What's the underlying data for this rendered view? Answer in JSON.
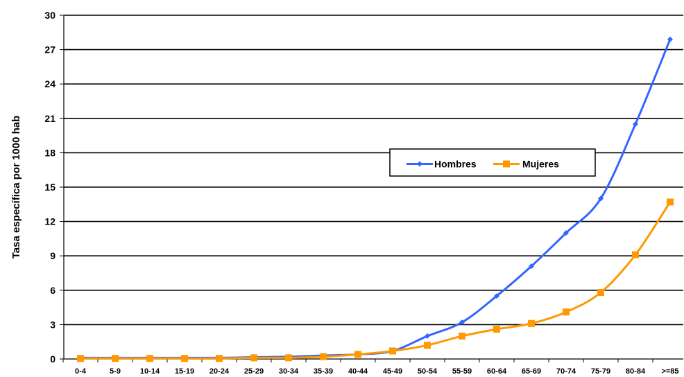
{
  "chart_data": {
    "type": "line",
    "title": "",
    "xlabel": "",
    "ylabel": "Tasa específica por 1000 hab",
    "ylim": [
      0,
      30
    ],
    "yticks": [
      0,
      3,
      6,
      9,
      12,
      15,
      18,
      21,
      24,
      27,
      30
    ],
    "grid": true,
    "legend_position": "center-right",
    "categories": [
      "0-4",
      "5-9",
      "10-14",
      "15-19",
      "20-24",
      "25-29",
      "30-34",
      "35-39",
      "40-44",
      "45-49",
      "50-54",
      "55-59",
      "60-64",
      "65-69",
      "70-74",
      "75-79",
      "80-84",
      ">=85"
    ],
    "series": [
      {
        "name": "Hombres",
        "color": "#3366ff",
        "marker": "diamond",
        "values": [
          0.1,
          0.1,
          0.1,
          0.1,
          0.1,
          0.15,
          0.2,
          0.3,
          0.4,
          0.7,
          2.0,
          3.2,
          5.5,
          8.1,
          11.0,
          14.0,
          20.5,
          27.9
        ]
      },
      {
        "name": "Mujeres",
        "color": "#ff9900",
        "marker": "square",
        "values": [
          0.05,
          0.05,
          0.05,
          0.05,
          0.05,
          0.1,
          0.1,
          0.2,
          0.4,
          0.7,
          1.2,
          2.0,
          2.6,
          3.1,
          4.1,
          5.8,
          9.1,
          13.7
        ]
      }
    ]
  }
}
